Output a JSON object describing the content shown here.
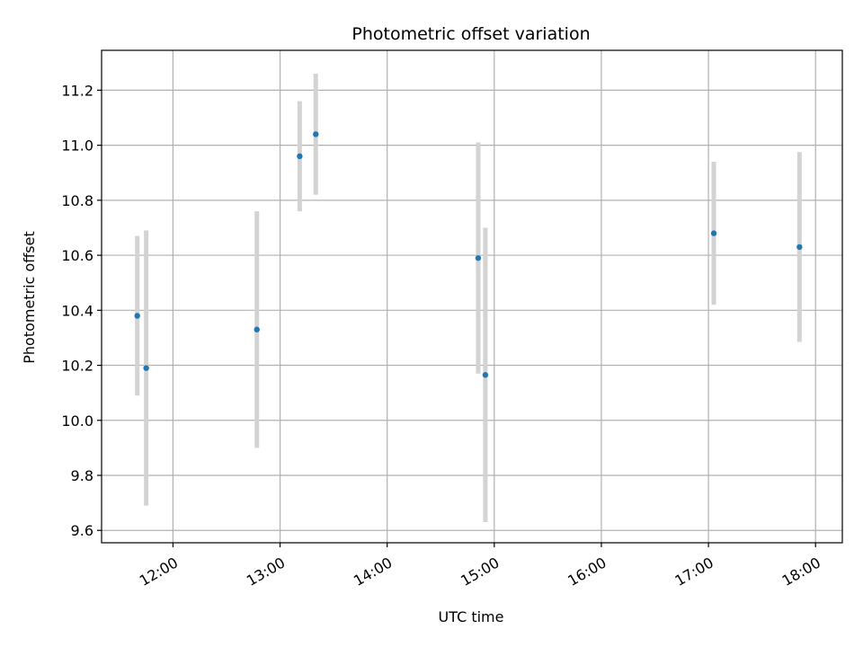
{
  "chart_data": {
    "type": "scatter",
    "title": "Photometric offset variation",
    "xlabel": "UTC time",
    "ylabel": "Photometric offset",
    "grid": true,
    "x_axis_type": "time",
    "xlim": [
      "11:20",
      "18:15"
    ],
    "ylim": [
      9.555,
      11.345
    ],
    "x_ticks": [
      "12:00",
      "13:00",
      "14:00",
      "15:00",
      "16:00",
      "17:00",
      "18:00"
    ],
    "y_ticks": [
      "9.6",
      "9.8",
      "10.0",
      "10.2",
      "10.4",
      "10.6",
      "10.8",
      "11.0",
      "11.2"
    ],
    "points": [
      {
        "x": "11:40",
        "y": 10.38,
        "yerr": 0.29
      },
      {
        "x": "11:45",
        "y": 10.19,
        "yerr": 0.5
      },
      {
        "x": "12:47",
        "y": 10.33,
        "yerr": 0.43
      },
      {
        "x": "13:11",
        "y": 10.96,
        "yerr": 0.2
      },
      {
        "x": "13:20",
        "y": 11.04,
        "yerr": 0.22
      },
      {
        "x": "14:51",
        "y": 10.59,
        "yerr": 0.42
      },
      {
        "x": "14:55",
        "y": 10.165,
        "yerr": 0.535
      },
      {
        "x": "17:03",
        "y": 10.68,
        "yerr": 0.26
      },
      {
        "x": "17:51",
        "y": 10.63,
        "yerr": 0.345
      }
    ],
    "colors": {
      "marker": "#1f77b4",
      "errorbar": "#d3d3d3",
      "grid": "#b0b0b0",
      "axes": "#000000"
    }
  }
}
